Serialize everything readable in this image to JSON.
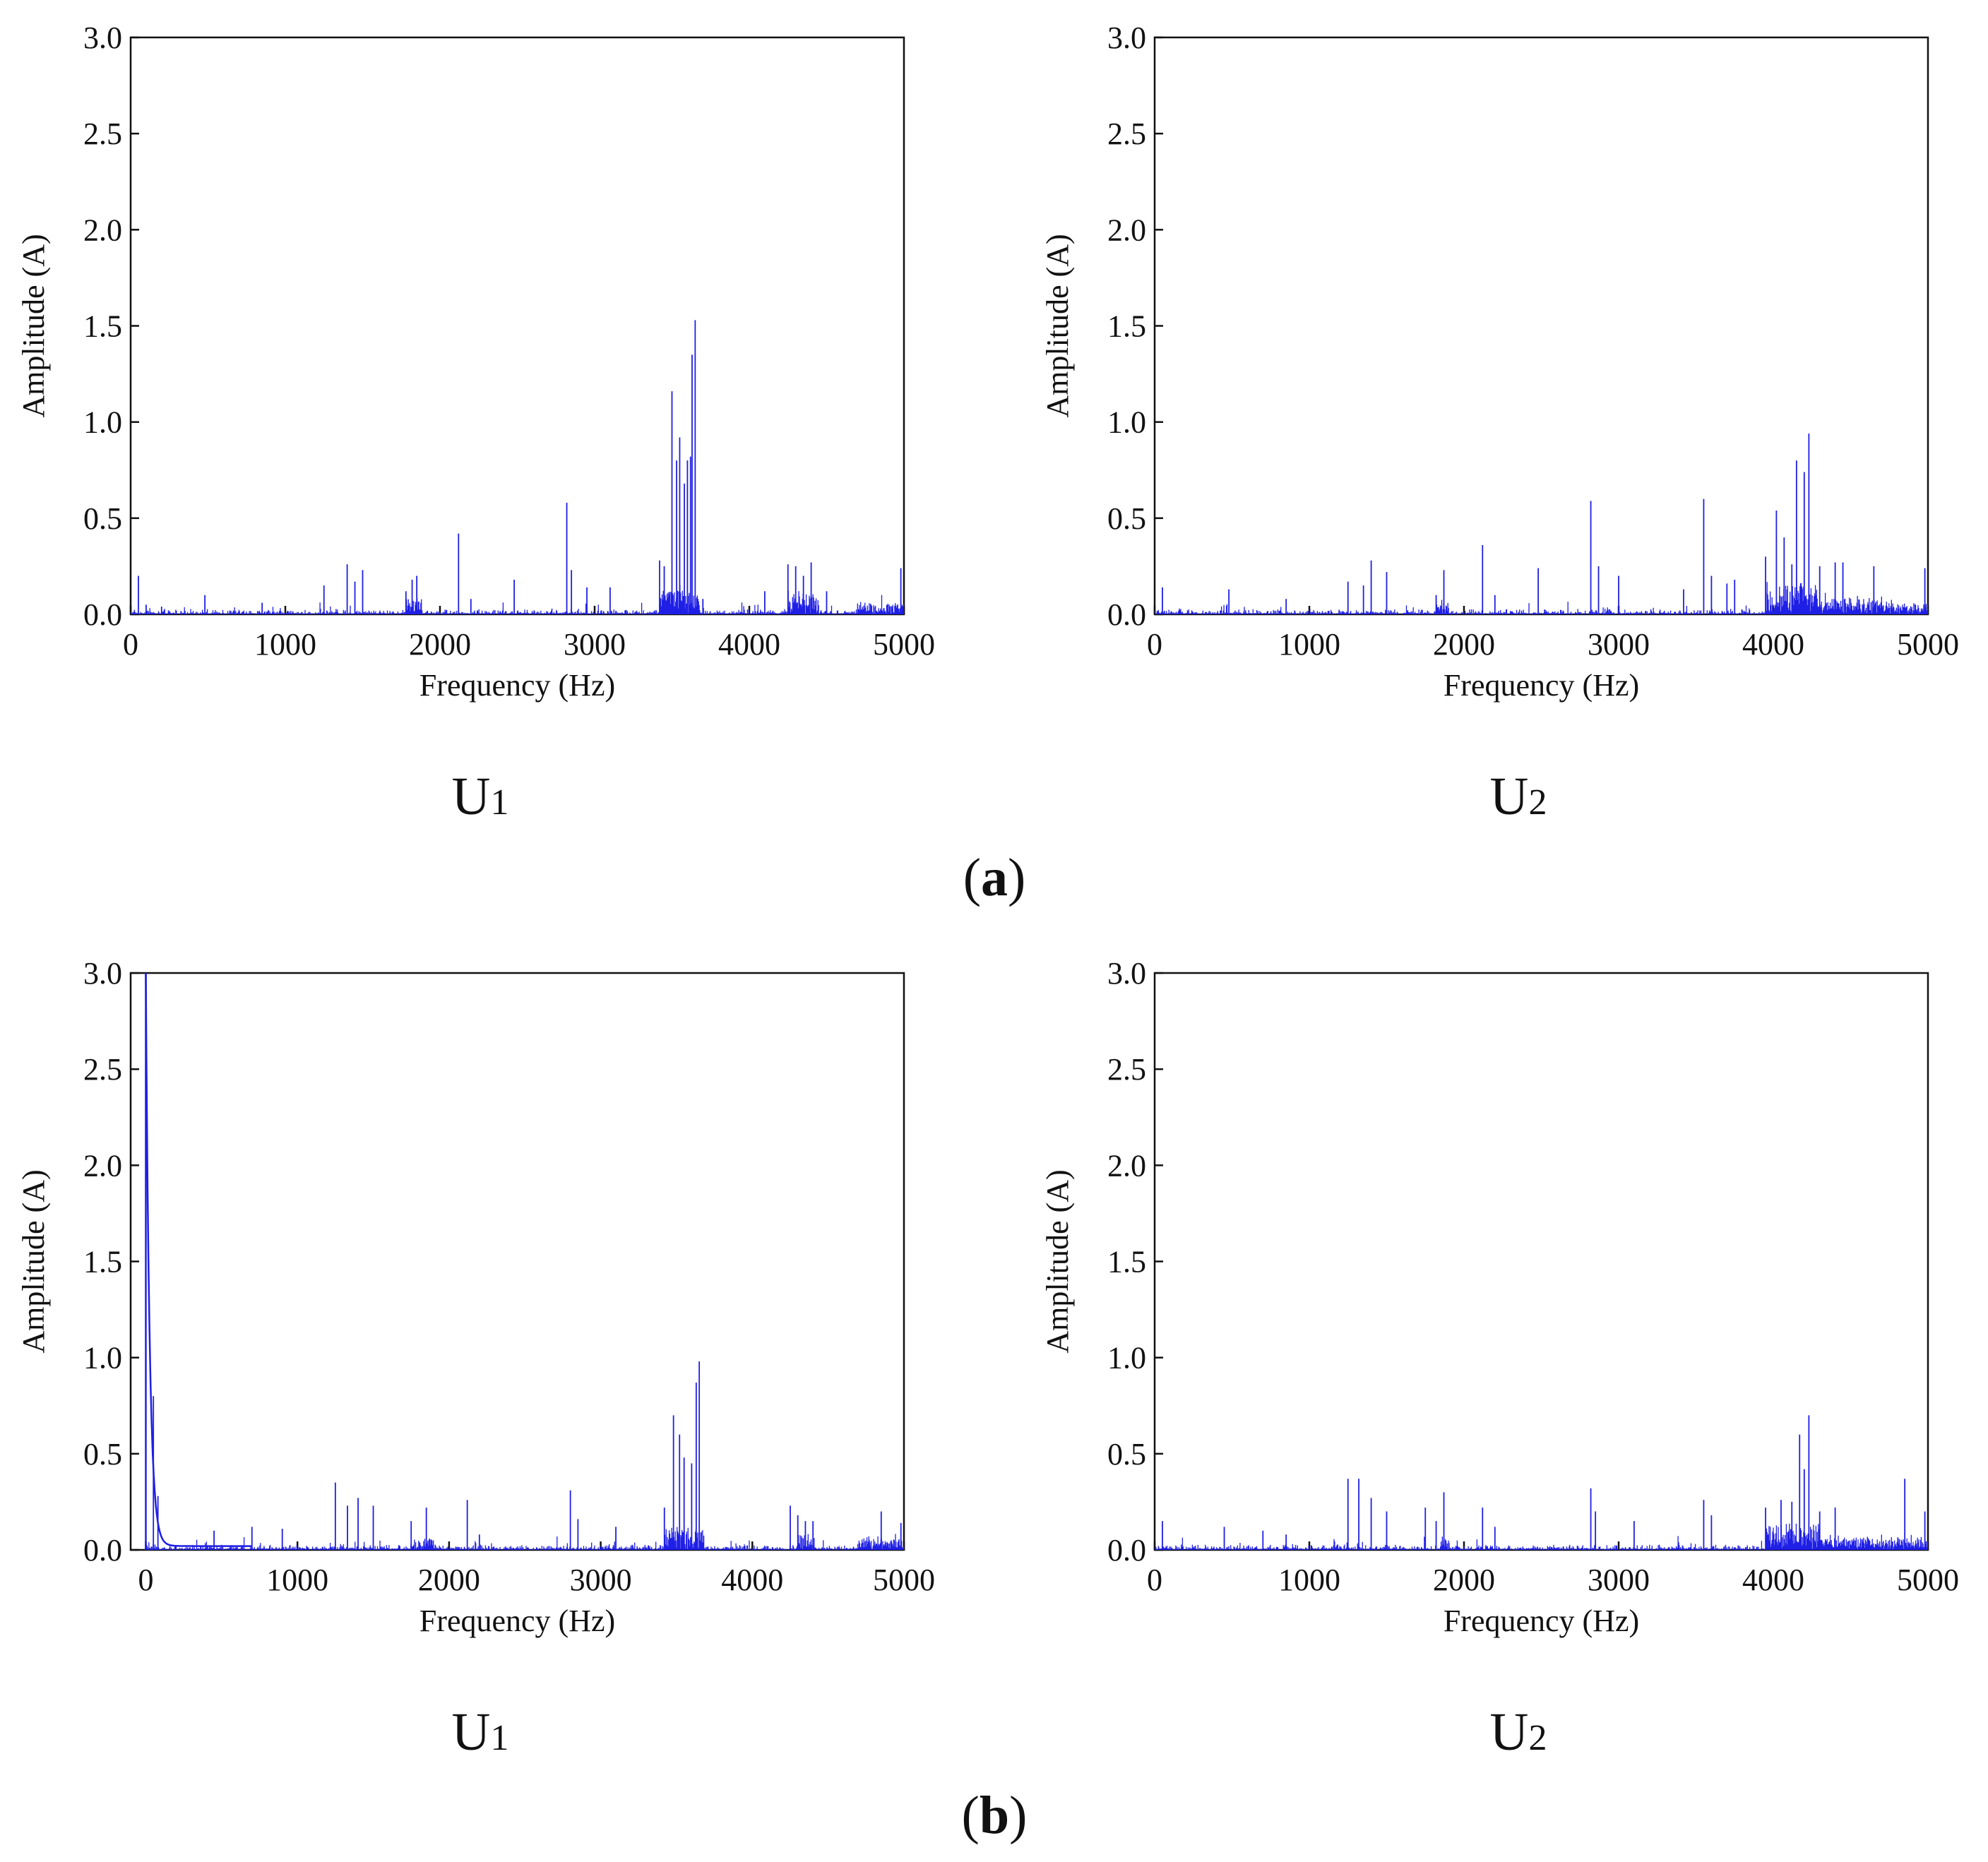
{
  "figure": {
    "group_a_label": "a",
    "group_b_label": "b",
    "line_color": "#1f1fe6"
  },
  "chart_data": [
    {
      "type": "line",
      "group": "a",
      "panel_label": "U",
      "panel_subscript": "1",
      "xlabel": "Frequency (Hz)",
      "ylabel": "Amplitude (A)",
      "xlim": [
        0,
        5000
      ],
      "ylim": [
        0,
        3.0
      ],
      "xticks": [
        0,
        1000,
        2000,
        3000,
        4000,
        5000
      ],
      "yticks": [
        "0.0",
        "0.5",
        "1.0",
        "1.5",
        "2.0",
        "2.5",
        "3.0"
      ],
      "noise_floor": 0.03,
      "dense_clusters": [
        [
          1780,
          1880,
          0.08
        ],
        [
          3420,
          3680,
          0.12
        ],
        [
          4250,
          4450,
          0.1
        ],
        [
          4700,
          5000,
          0.05
        ]
      ],
      "peaks": [
        [
          50,
          0.2
        ],
        [
          100,
          0.05
        ],
        [
          200,
          0.04
        ],
        [
          480,
          0.1
        ],
        [
          850,
          0.06
        ],
        [
          1250,
          0.15
        ],
        [
          1400,
          0.26
        ],
        [
          1450,
          0.17
        ],
        [
          1500,
          0.23
        ],
        [
          1780,
          0.12
        ],
        [
          1820,
          0.18
        ],
        [
          1850,
          0.2
        ],
        [
          2120,
          0.42
        ],
        [
          2200,
          0.08
        ],
        [
          2480,
          0.18
        ],
        [
          2820,
          0.58
        ],
        [
          2850,
          0.23
        ],
        [
          2950,
          0.14
        ],
        [
          3100,
          0.14
        ],
        [
          3420,
          0.28
        ],
        [
          3450,
          0.25
        ],
        [
          3500,
          1.16
        ],
        [
          3530,
          0.8
        ],
        [
          3550,
          0.92
        ],
        [
          3580,
          0.68
        ],
        [
          3600,
          0.8
        ],
        [
          3620,
          0.82
        ],
        [
          3630,
          1.35
        ],
        [
          3650,
          1.53
        ],
        [
          3700,
          0.08
        ],
        [
          4100,
          0.12
        ],
        [
          4250,
          0.26
        ],
        [
          4300,
          0.25
        ],
        [
          4350,
          0.2
        ],
        [
          4400,
          0.27
        ],
        [
          4500,
          0.12
        ],
        [
          4980,
          0.24
        ]
      ]
    },
    {
      "type": "line",
      "group": "a",
      "panel_label": "U",
      "panel_subscript": "2",
      "xlabel": "Frequency (Hz)",
      "ylabel": "Amplitude (A)",
      "xlim": [
        0,
        5000
      ],
      "ylim": [
        0,
        3.0
      ],
      "xticks": [
        0,
        1000,
        2000,
        3000,
        4000,
        5000
      ],
      "yticks": [
        "0.0",
        "0.5",
        "1.0",
        "1.5",
        "2.0",
        "2.5",
        "3.0"
      ],
      "noise_floor": 0.03,
      "dense_clusters": [
        [
          1820,
          1900,
          0.06
        ],
        [
          3950,
          4300,
          0.15
        ],
        [
          4300,
          4700,
          0.08
        ],
        [
          4700,
          5000,
          0.05
        ]
      ],
      "peaks": [
        [
          50,
          0.14
        ],
        [
          480,
          0.13
        ],
        [
          850,
          0.08
        ],
        [
          1250,
          0.17
        ],
        [
          1350,
          0.15
        ],
        [
          1400,
          0.28
        ],
        [
          1500,
          0.22
        ],
        [
          1820,
          0.1
        ],
        [
          1870,
          0.23
        ],
        [
          2120,
          0.36
        ],
        [
          2200,
          0.1
        ],
        [
          2480,
          0.24
        ],
        [
          2820,
          0.59
        ],
        [
          2870,
          0.25
        ],
        [
          3000,
          0.2
        ],
        [
          3420,
          0.13
        ],
        [
          3550,
          0.6
        ],
        [
          3600,
          0.2
        ],
        [
          3700,
          0.16
        ],
        [
          3750,
          0.18
        ],
        [
          3950,
          0.3
        ],
        [
          4020,
          0.54
        ],
        [
          4070,
          0.4
        ],
        [
          4120,
          0.26
        ],
        [
          4150,
          0.8
        ],
        [
          4200,
          0.74
        ],
        [
          4230,
          0.94
        ],
        [
          4300,
          0.25
        ],
        [
          4400,
          0.27
        ],
        [
          4450,
          0.27
        ],
        [
          4650,
          0.25
        ],
        [
          4980,
          0.24
        ]
      ]
    },
    {
      "type": "line",
      "group": "b",
      "panel_label": "U",
      "panel_subscript": "1",
      "xlabel": "Frequency (Hz)",
      "ylabel": "Amplitude (A)",
      "xlim": [
        -100,
        5000
      ],
      "ylim": [
        0,
        3.0
      ],
      "xticks": [
        0,
        1000,
        2000,
        3000,
        4000,
        5000
      ],
      "yticks": [
        "0.0",
        "0.5",
        "1.0",
        "1.5",
        "2.0",
        "2.5",
        "3.0"
      ],
      "noise_floor": 0.03,
      "dc_decay": {
        "start": 0,
        "peak": 3.0,
        "tau": 25,
        "baseline": 0.02
      },
      "dense_clusters": [
        [
          1800,
          1900,
          0.06
        ],
        [
          3420,
          3680,
          0.1
        ],
        [
          4300,
          4400,
          0.08
        ],
        [
          4700,
          5000,
          0.05
        ]
      ],
      "peaks": [
        [
          50,
          0.8
        ],
        [
          80,
          0.28
        ],
        [
          450,
          0.1
        ],
        [
          700,
          0.12
        ],
        [
          900,
          0.11
        ],
        [
          1250,
          0.35
        ],
        [
          1330,
          0.23
        ],
        [
          1400,
          0.27
        ],
        [
          1500,
          0.23
        ],
        [
          1750,
          0.15
        ],
        [
          1850,
          0.22
        ],
        [
          2120,
          0.26
        ],
        [
          2200,
          0.08
        ],
        [
          2800,
          0.31
        ],
        [
          2850,
          0.16
        ],
        [
          3100,
          0.12
        ],
        [
          3420,
          0.22
        ],
        [
          3480,
          0.7
        ],
        [
          3520,
          0.6
        ],
        [
          3550,
          0.48
        ],
        [
          3600,
          0.45
        ],
        [
          3630,
          0.87
        ],
        [
          3650,
          0.98
        ],
        [
          4250,
          0.23
        ],
        [
          4300,
          0.18
        ],
        [
          4350,
          0.15
        ],
        [
          4400,
          0.15
        ],
        [
          4850,
          0.2
        ],
        [
          4980,
          0.14
        ]
      ]
    },
    {
      "type": "line",
      "group": "b",
      "panel_label": "U",
      "panel_subscript": "2",
      "xlabel": "Frequency (Hz)",
      "ylabel": "Amplitude (A)",
      "xlim": [
        0,
        5000
      ],
      "ylim": [
        0,
        3.0
      ],
      "xticks": [
        0,
        1000,
        2000,
        3000,
        4000,
        5000
      ],
      "yticks": [
        "0.0",
        "0.5",
        "1.0",
        "1.5",
        "2.0",
        "2.5",
        "3.0"
      ],
      "noise_floor": 0.03,
      "dense_clusters": [
        [
          1850,
          1900,
          0.05
        ],
        [
          3950,
          4300,
          0.12
        ],
        [
          4300,
          4700,
          0.06
        ],
        [
          4700,
          5000,
          0.05
        ]
      ],
      "peaks": [
        [
          50,
          0.15
        ],
        [
          450,
          0.12
        ],
        [
          700,
          0.1
        ],
        [
          850,
          0.08
        ],
        [
          1250,
          0.37
        ],
        [
          1320,
          0.37
        ],
        [
          1400,
          0.27
        ],
        [
          1500,
          0.2
        ],
        [
          1750,
          0.22
        ],
        [
          1820,
          0.15
        ],
        [
          1870,
          0.3
        ],
        [
          2120,
          0.22
        ],
        [
          2200,
          0.12
        ],
        [
          2820,
          0.32
        ],
        [
          2850,
          0.2
        ],
        [
          3100,
          0.15
        ],
        [
          3550,
          0.26
        ],
        [
          3600,
          0.18
        ],
        [
          3950,
          0.22
        ],
        [
          4050,
          0.26
        ],
        [
          4120,
          0.25
        ],
        [
          4170,
          0.6
        ],
        [
          4200,
          0.42
        ],
        [
          4230,
          0.7
        ],
        [
          4300,
          0.2
        ],
        [
          4400,
          0.22
        ],
        [
          4850,
          0.37
        ],
        [
          4980,
          0.2
        ]
      ]
    }
  ]
}
